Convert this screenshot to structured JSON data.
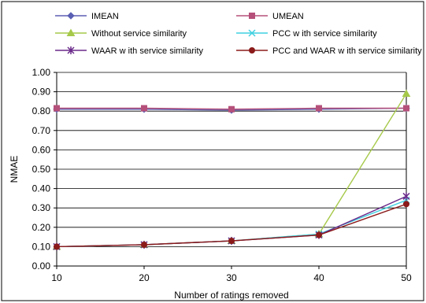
{
  "chart_data": {
    "type": "line",
    "title": "",
    "xlabel": "Number of ratings removed",
    "ylabel": "NMAE",
    "x": [
      10,
      20,
      30,
      40,
      50
    ],
    "x_tick_labels": [
      "10",
      "20",
      "30",
      "40",
      "50"
    ],
    "ylim": [
      0,
      1
    ],
    "y_ticks": [
      0.0,
      0.1,
      0.2,
      0.3,
      0.4,
      0.5,
      0.6,
      0.7,
      0.8,
      0.9,
      1.0
    ],
    "y_tick_labels": [
      "0.00",
      "0.10",
      "0.20",
      "0.30",
      "0.40",
      "0.50",
      "0.60",
      "0.70",
      "0.80",
      "0.90",
      "1.00"
    ],
    "grid": "horizontal",
    "legend_position": "top",
    "series": [
      {
        "name": "IMEAN",
        "values": [
          0.81,
          0.81,
          0.805,
          0.81,
          0.815
        ],
        "color": "#5b5fb3",
        "marker": "diamond"
      },
      {
        "name": "UMEAN",
        "values": [
          0.815,
          0.815,
          0.81,
          0.815,
          0.815
        ],
        "color": "#b5507a",
        "marker": "square"
      },
      {
        "name": "Without service similarity",
        "values": [
          0.1,
          0.11,
          0.13,
          0.165,
          0.89
        ],
        "color": "#a6c94a",
        "marker": "triangle"
      },
      {
        "name": "PCC w ith service similarity",
        "values": [
          0.1,
          0.11,
          0.13,
          0.165,
          0.34
        ],
        "color": "#3fd0e0",
        "marker": "x"
      },
      {
        "name": "WAAR w ith service similarity",
        "values": [
          0.1,
          0.11,
          0.13,
          0.16,
          0.36
        ],
        "color": "#6a2a8a",
        "marker": "star"
      },
      {
        "name": "PCC and WAAR w ith service similarity",
        "values": [
          0.1,
          0.11,
          0.13,
          0.16,
          0.32
        ],
        "color": "#8b1a1a",
        "marker": "circle"
      }
    ]
  }
}
